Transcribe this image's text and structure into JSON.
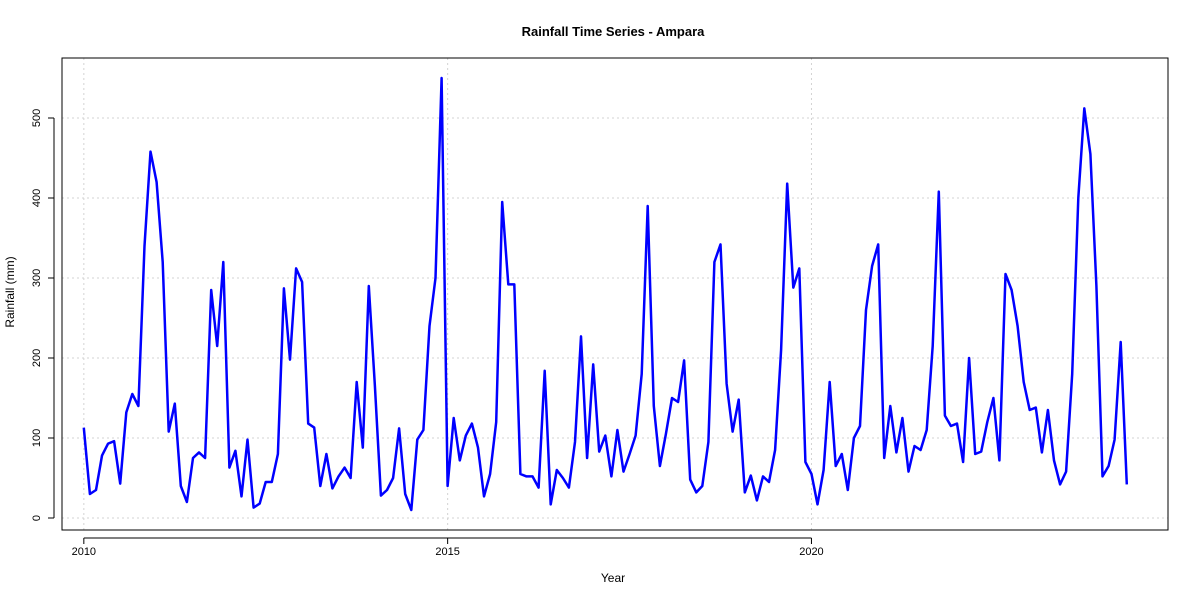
{
  "chart_data": {
    "type": "line",
    "title": "Rainfall Time Series - Ampara",
    "xlabel": "Year",
    "ylabel": "Rainfall (mm)",
    "xlim": [
      2009.7,
      2024.9
    ],
    "ylim": [
      -15,
      575
    ],
    "x_ticks": [
      2010,
      2015,
      2020
    ],
    "y_ticks": [
      0,
      100,
      200,
      300,
      400,
      500
    ],
    "grid": true,
    "series_color": "#0000ff",
    "series": [
      {
        "x_start": 2010.0,
        "x_step": 0.0833333,
        "values": [
          113,
          30,
          35,
          78,
          93,
          96,
          43,
          132,
          155,
          140,
          340,
          458,
          420,
          320,
          108,
          143,
          40,
          20,
          75,
          82,
          75,
          285,
          215,
          320,
          63,
          84,
          27,
          98,
          13,
          18,
          45,
          45,
          80,
          287,
          198,
          312,
          295,
          118,
          113,
          40,
          80,
          37,
          52,
          63,
          50,
          170,
          88,
          290,
          165,
          28,
          35,
          50,
          112,
          30,
          10,
          98,
          110,
          240,
          300,
          550,
          40,
          125,
          72,
          103,
          118,
          88,
          27,
          55,
          120,
          395,
          292,
          292,
          55,
          52,
          52,
          38,
          184,
          17,
          60,
          50,
          38,
          95,
          227,
          75,
          192,
          83,
          103,
          52,
          110,
          58,
          80,
          103,
          180,
          390,
          140,
          65,
          105,
          150,
          145,
          197,
          48,
          32,
          40,
          95,
          320,
          342,
          168,
          108,
          148,
          32,
          53,
          22,
          52,
          45,
          85,
          210,
          418,
          288,
          312,
          70,
          55,
          17,
          60,
          170,
          65,
          80,
          35,
          100,
          115,
          260,
          315,
          342,
          75,
          140,
          82,
          125,
          58,
          90,
          85,
          110,
          215,
          408,
          128,
          115,
          118,
          70,
          200,
          80,
          83,
          120,
          150,
          72,
          305,
          285,
          240,
          170,
          135,
          138,
          82,
          135,
          72,
          42,
          58,
          180,
          400,
          512,
          455,
          290,
          52,
          65,
          98,
          220,
          42
        ]
      }
    ]
  }
}
